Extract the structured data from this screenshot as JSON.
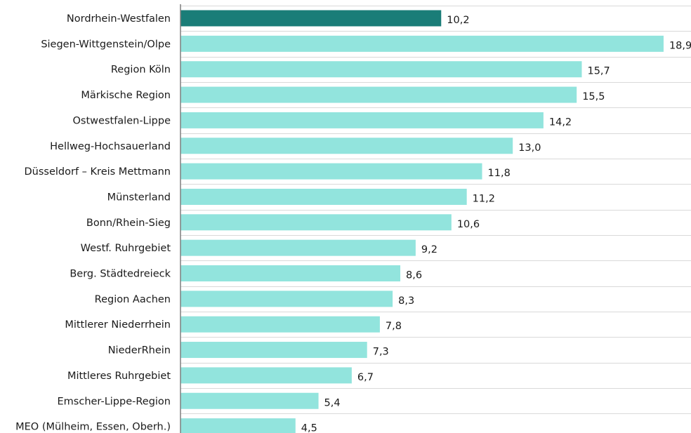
{
  "chart_data": {
    "type": "bar",
    "orientation": "horizontal",
    "title": "",
    "xlabel": "",
    "ylabel": "",
    "grid": true,
    "categories": [
      "Nordrhein-Westfalen",
      "Siegen-Wittgenstein/Olpe",
      "Region Köln",
      "Märkische Region",
      "Ostwestfalen-Lippe",
      "Hellweg-Hochsauerland",
      "Düsseldorf – Kreis Mettmann",
      "Münsterland",
      "Bonn/Rhein-Sieg",
      "Westf. Ruhrgebiet",
      "Berg. Städtedreieck",
      "Region Aachen",
      "Mittlerer Niederrhein",
      "NiederRhein",
      "Mittleres Ruhrgebiet",
      "Emscher-Lippe-Region",
      "MEO (Mülheim, Essen, Oberh.)"
    ],
    "values": [
      10.2,
      18.9,
      15.7,
      15.5,
      14.2,
      13.0,
      11.8,
      11.2,
      10.6,
      9.2,
      8.6,
      8.3,
      7.8,
      7.3,
      6.7,
      5.4,
      4.5
    ],
    "value_labels": [
      "10,2",
      "18,9",
      "15,7",
      "15,5",
      "14,2",
      "13,0",
      "11,8",
      "11,2",
      "10,6",
      "9,2",
      "8,6",
      "8,3",
      "7,8",
      "7,3",
      "6,7",
      "5,4",
      "4,5"
    ],
    "highlight_index": 0,
    "colors": {
      "highlight": "#1a7d78",
      "default": "#92e4dd"
    },
    "xlim": [
      0,
      20
    ]
  }
}
